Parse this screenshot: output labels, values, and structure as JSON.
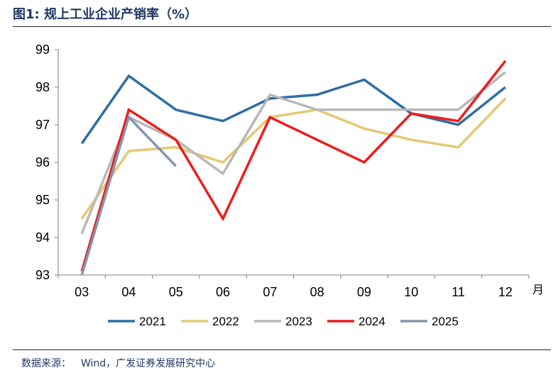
{
  "figure": {
    "title": "图1:  规上工业企业产销率（%）",
    "source_label": "数据来源：",
    "source_text": "Wind，广发证券发展研究中心"
  },
  "chart_data": {
    "type": "line",
    "title": "规上工业企业产销率（%）",
    "xlabel": "月",
    "ylabel": "",
    "categories": [
      "03",
      "04",
      "05",
      "06",
      "07",
      "08",
      "09",
      "10",
      "11",
      "12"
    ],
    "ylim": [
      93,
      99
    ],
    "yticks": [
      93,
      94,
      95,
      96,
      97,
      98,
      99
    ],
    "grid": false,
    "legend_position": "bottom",
    "series": [
      {
        "name": "2021",
        "color": "#2e6da4",
        "values": [
          96.5,
          98.3,
          97.4,
          97.1,
          97.7,
          97.8,
          98.2,
          97.3,
          97.0,
          98.0
        ]
      },
      {
        "name": "2022",
        "color": "#e5c873",
        "values": [
          94.5,
          96.3,
          96.4,
          96.0,
          97.2,
          97.4,
          96.9,
          96.6,
          96.4,
          97.7
        ]
      },
      {
        "name": "2023",
        "color": "#b8b8b8",
        "values": [
          94.1,
          97.2,
          96.6,
          95.7,
          97.8,
          97.4,
          97.4,
          97.4,
          97.4,
          98.4
        ]
      },
      {
        "name": "2024",
        "color": "#ee1c1c",
        "values": [
          93.1,
          97.4,
          96.6,
          94.5,
          97.2,
          96.6,
          96.0,
          97.3,
          97.1,
          98.7
        ]
      },
      {
        "name": "2025",
        "color": "#8496b0",
        "values": [
          93.0,
          97.2,
          95.9,
          null,
          null,
          null,
          null,
          null,
          null,
          null
        ]
      }
    ]
  }
}
